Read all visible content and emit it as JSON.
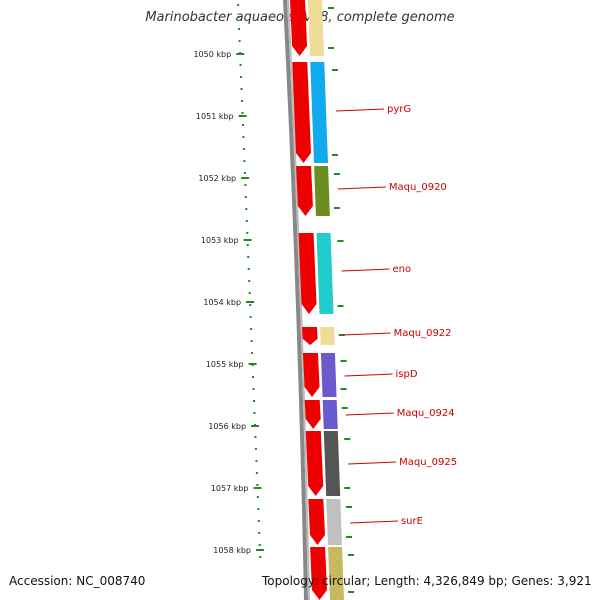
{
  "title": "Marinobacter aquaeolei VT8, complete genome",
  "footer": {
    "accession": "Accession: NC_008740",
    "topology": "Topology: circular; Length: 4,326,849 bp; Genes: 3,921"
  },
  "scale": {
    "unit": "kbp",
    "ticks": [
      "1050 kbp",
      "1051 kbp",
      "1052 kbp",
      "1053 kbp",
      "1054 kbp",
      "1055 kbp",
      "1056 kbp",
      "1057 kbp",
      "1058 kbp"
    ]
  },
  "genes": [
    {
      "label": "",
      "color": "#eedd99"
    },
    {
      "label": "pyrG",
      "color": "#11aaee"
    },
    {
      "label": "Maqu_0920",
      "color": "#6b8e23"
    },
    {
      "label": "eno",
      "color": "#22cccc"
    },
    {
      "label": "Maqu_0922",
      "color": "#eedd99"
    },
    {
      "label": "ispD",
      "color": "#6a5acd"
    },
    {
      "label": "Maqu_0924",
      "color": "#6a5acd"
    },
    {
      "label": "Maqu_0925",
      "color": "#555555"
    },
    {
      "label": "surE",
      "color": "#c0c0c0"
    },
    {
      "label": "",
      "color": "#c8b860"
    }
  ],
  "colors": {
    "strand": "#ee0000",
    "backbone": "#888888",
    "tick": "#228822",
    "gene_label": "#cc0000"
  }
}
